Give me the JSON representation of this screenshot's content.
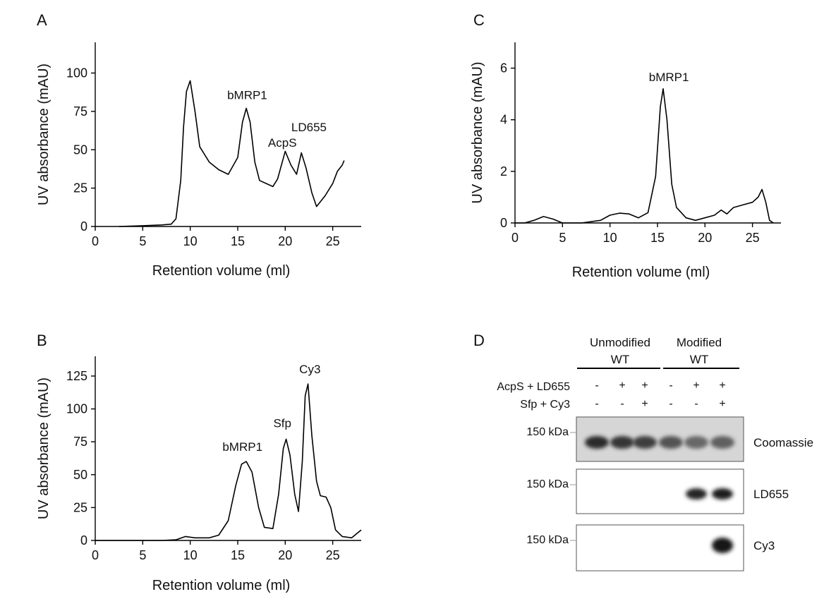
{
  "panel_letters": {
    "A": "A",
    "B": "B",
    "C": "C",
    "D": "D"
  },
  "chart_data": [
    {
      "panel": "A",
      "type": "line",
      "xlabel": "Retention volume (ml)",
      "ylabel": "UV absorbance (mAU)",
      "xlim": [
        0,
        28
      ],
      "ylim": [
        0,
        120
      ],
      "xticks": [
        0,
        5,
        10,
        15,
        20,
        25
      ],
      "yticks": [
        0,
        25,
        50,
        75,
        100
      ],
      "annotations": [
        {
          "text": "bMRP1",
          "x": 16.0,
          "y": 83
        },
        {
          "text": "AcpS",
          "x": 19.7,
          "y": 52
        },
        {
          "text": "LD655",
          "x": 22.5,
          "y": 62
        }
      ],
      "series": [
        {
          "x": [
            2.5,
            5,
            7,
            8,
            8.5,
            9,
            9.3,
            9.6,
            10,
            10.5,
            11,
            12,
            13,
            14,
            15,
            15.5,
            15.9,
            16.3,
            16.8,
            17.3,
            18,
            18.7,
            19.2,
            20,
            20.6,
            21.2,
            21.7,
            22.2,
            22.8,
            23.3,
            24.2,
            25,
            25.5,
            26,
            26.2
          ],
          "y": [
            0,
            0.5,
            1,
            1.5,
            5,
            30,
            65,
            88,
            95,
            75,
            52,
            42,
            37,
            34,
            45,
            68,
            77,
            68,
            42,
            30,
            28,
            26,
            31,
            49,
            40,
            34,
            48,
            38,
            22,
            13,
            20,
            28,
            36,
            40,
            43
          ]
        }
      ]
    },
    {
      "panel": "B",
      "type": "line",
      "xlabel": "Retention volume (ml)",
      "ylabel": "UV absorbance (mAU)",
      "xlim": [
        0,
        28
      ],
      "ylim": [
        0,
        140
      ],
      "xticks": [
        0,
        5,
        10,
        15,
        20,
        25
      ],
      "yticks": [
        0,
        25,
        50,
        75,
        100,
        125
      ],
      "annotations": [
        {
          "text": "bMRP1",
          "x": 15.5,
          "y": 68
        },
        {
          "text": "Sfp",
          "x": 19.7,
          "y": 86
        },
        {
          "text": "Cy3",
          "x": 22.6,
          "y": 127
        }
      ],
      "series": [
        {
          "x": [
            0,
            7,
            8.5,
            9.5,
            10.5,
            12,
            13,
            14,
            14.8,
            15.4,
            15.9,
            16.5,
            17.2,
            17.8,
            18.7,
            19.3,
            19.8,
            20.1,
            20.5,
            21.0,
            21.4,
            21.8,
            22.1,
            22.4,
            22.8,
            23.3,
            23.7,
            24.3,
            24.8,
            25.3,
            26,
            27,
            28
          ],
          "y": [
            0,
            0,
            0.5,
            3,
            2,
            2,
            4,
            15,
            42,
            58,
            60,
            52,
            25,
            10,
            9,
            35,
            70,
            77,
            65,
            35,
            22,
            60,
            110,
            119,
            80,
            45,
            34,
            33,
            25,
            8,
            3,
            2,
            8
          ]
        }
      ]
    },
    {
      "panel": "C",
      "type": "line",
      "xlabel": "Retention volume (ml)",
      "ylabel": "UV absorbance (mAU)",
      "xlim": [
        0,
        28
      ],
      "ylim": [
        0,
        7
      ],
      "xticks": [
        0,
        5,
        10,
        15,
        20,
        25
      ],
      "yticks": [
        0,
        2,
        4,
        6
      ],
      "annotations": [
        {
          "text": "bMRP1",
          "x": 16.2,
          "y": 5.5
        }
      ],
      "series": [
        {
          "x": [
            0,
            1,
            2,
            3,
            4,
            5,
            7,
            9,
            10,
            11,
            12,
            13,
            14,
            14.8,
            15.3,
            15.6,
            16.0,
            16.5,
            17,
            18,
            19,
            20,
            21,
            21.7,
            22.3,
            23,
            24,
            25,
            25.6,
            26.0,
            26.4,
            26.8,
            27.2
          ],
          "y": [
            0,
            0,
            0.1,
            0.25,
            0.15,
            0,
            0,
            0.1,
            0.3,
            0.38,
            0.35,
            0.2,
            0.4,
            1.8,
            4.5,
            5.2,
            4.0,
            1.5,
            0.6,
            0.2,
            0.1,
            0.2,
            0.3,
            0.5,
            0.35,
            0.6,
            0.7,
            0.8,
            1.0,
            1.3,
            0.8,
            0.1,
            0
          ]
        }
      ]
    }
  ],
  "gel": {
    "header_groups": [
      {
        "line1": "Unmodified",
        "line2": "WT"
      },
      {
        "line1": "Modified",
        "line2": "WT"
      }
    ],
    "row_labels": [
      "AcpS + LD655",
      "Sfp + Cy3"
    ],
    "row1_signs": [
      "-",
      "+",
      "+",
      "-",
      "+",
      "+"
    ],
    "row2_signs": [
      "-",
      "-",
      "+",
      "-",
      "-",
      "+"
    ],
    "marker_label": "150 kDa",
    "panels": [
      {
        "label": "Coomassie",
        "band_intensity": [
          0.9,
          0.85,
          0.8,
          0.7,
          0.6,
          0.65
        ]
      },
      {
        "label": "LD655",
        "band_intensity": [
          0,
          0,
          0,
          0,
          0.92,
          0.95
        ]
      },
      {
        "label": "Cy3",
        "band_intensity": [
          0,
          0,
          0,
          0,
          0,
          1
        ]
      }
    ]
  }
}
